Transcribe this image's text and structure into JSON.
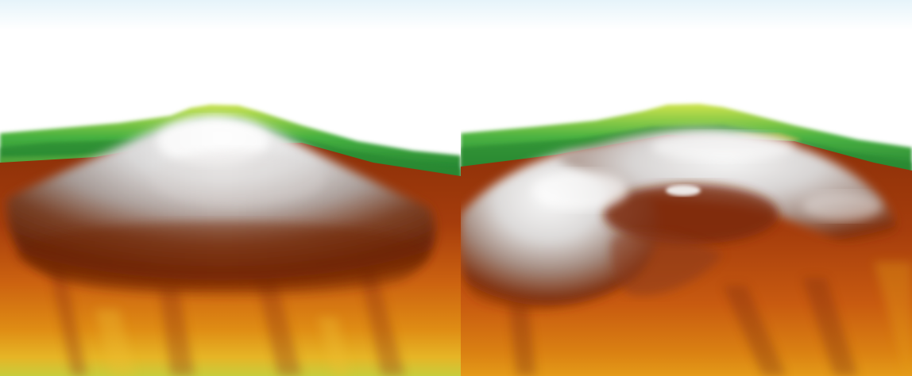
{
  "figure": {
    "panels": [
      {
        "id": "left",
        "content": "terrain-render-conical-peak"
      },
      {
        "id": "right",
        "content": "terrain-render-summit-crater"
      }
    ],
    "colors": {
      "sky_top": "#eaf6fb",
      "sky": "#ffffff",
      "snow": "#f4f4f4",
      "rock_gray": "#b9b2ae",
      "dark_brown": "#7a2a08",
      "red_brown": "#a03a0c",
      "orange": "#d8740c",
      "amber": "#e8a010",
      "yellow": "#e8d030",
      "lime": "#b8d040",
      "green": "#3fa83a",
      "dark_green": "#1d7a2e"
    }
  }
}
